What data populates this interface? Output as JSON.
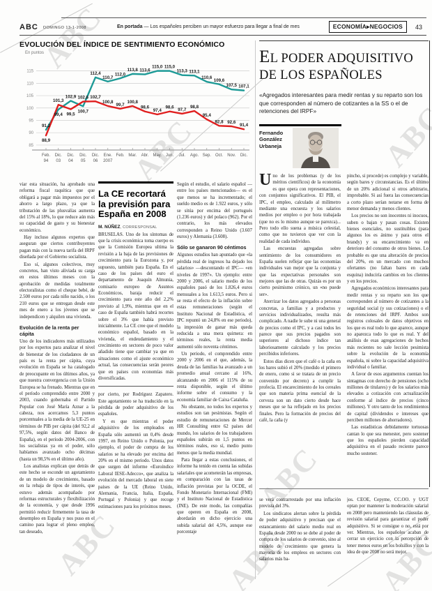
{
  "watermark": "ABC",
  "header": {
    "brand": "ABC",
    "date": "DOMINGO 13-1-2008",
    "strap_label": "En portada",
    "strap_dash": "—",
    "strap_text": "Los españoles perciben un mayor esfuerzo para llegar a final de mes",
    "section": "ECONOMÍA▸NEGOCIOS",
    "page_number": "43"
  },
  "chart": {
    "title": "EVOLUCIÓN DEL ÍNDICE DE SENTIMIENTO ECONÓMICO",
    "unit_label": "En puntos"
  },
  "chart_data": {
    "type": "line",
    "title": "EVOLUCIÓN DEL ÍNDICE DE SENTIMIENTO ECONÓMICO",
    "unit": "En puntos",
    "categories": [
      "Feb. 94",
      "Dic. 03",
      "Dic. 04",
      "Dic. 05",
      "Dic. 06",
      "Ene. 2007",
      "Feb.",
      "Mar.",
      "Abr.",
      "May.",
      "Jun.",
      "Jul.",
      "Ago.",
      "Sep.",
      "Oct.",
      "Nov.",
      "Dic."
    ],
    "series": [
      {
        "name": "línea verde azulada",
        "color": "#1d9a96",
        "values": [
          91.2,
          99.4,
          102.9,
          100.7,
          112.4,
          110.7,
          112.0,
          113.8,
          113.6,
          115.0,
          115.0,
          113.3,
          113.1,
          110.6,
          109.6,
          107.5,
          107.1
        ]
      },
      {
        "name": "línea roja",
        "color": "#e01f1f",
        "values": [
          88.9,
          101.3,
          99.5,
          102.6,
          102.7,
          100.8,
          99.7,
          100.8,
          98.6,
          97.4,
          98.6,
          97.7,
          98.8,
          95.4,
          92.8,
          92.6,
          91.4
        ]
      }
    ],
    "yticks": [
      85,
      90,
      95,
      100,
      105,
      110,
      115
    ],
    "ylim": [
      83,
      118
    ],
    "grid": true,
    "legend": "none"
  },
  "box": {
    "title": "La CE recortará la previsión para España en 2008",
    "byline_name": "M. NÚÑEZ",
    "byline_role": ", CORRESPONSAL",
    "paragraphs": [
      {
        "t": "p0",
        "text": "BRUSELAS. Uno de los síntomas de que la crisis económica toma cuerpo es que la Comisión Europea ultima la revisión a la baja de las previsiones de crecimiento para la Eurozona y, por supuesto, también para España. En el caso de los países del euro el departamento de Joaquín Almunia, comisario europeo de Asuntos Económicos, baraja reducir el crecimiento para este año del 2,2% previsto al 1,9%, mientras que en el caso de España también habrá recortes sobre el 3% que había previsto inicialmente. La CE cree que el modelo económico español, basado en la vivienda, el endeudamiento y el crecimiento en sectores de poco valor añadido tiene que cambiar ya que en situaciones como el ajuste económico actual, las consecuencias serán peores que en países con economías más diversificadas."
      }
    ]
  },
  "main_article": {
    "col1": [
      {
        "t": "p0",
        "text": "viar esta situación, ha aprobado una reforma fiscal raquítica que que obligará a pagar más impuestos por el ahorro a largo plazo, ya que la tributación de las plusvalías aumenta del 15% al 18%, lo que reduce aún más su capacidad de gasto y su bienestar económico."
      },
      {
        "t": "p",
        "text": "Hay incluso algunos expertos que aseguran que ciertos contribuyentes pagan más con la nueva tarifa del IRPF diseñada por el Gobierno socialista."
      },
      {
        "t": "p",
        "text": "Eso sí, algunos colectivos, muy concretos, han visto aliviada su carga en estos últimos meses con la aprobación de medidas totalmente electoralistas como el cheque bebé, de 2.500 euros por cada niño nacido, o los 210 euros que se entregan desde este mes de enero a los jóvenes que se independicen y alquilen una vivienda."
      },
      {
        "t": "h",
        "text": "Evolución de la renta per cápita"
      },
      {
        "t": "p0",
        "text": "Uno de los indicadores más utilizados por los expertos para analizar el nivel de bienestar de los ciudadanos de un país es la renta per cápita, cuya evolución en España se ha catalogado de preocupante en los últimos años, ya que nuestra convergencia con la Unión Europea se ha frenado. Mientras que en el período comprendido entre 2000 y 2003, cuando gobernaba el Partido Popular con José María Aznar a la cabeza, nos acercamos 5,3 puntos porcentuales a la media de la UE-25 en términos de PIB per cápita (del 92,2 al 97,5%, según datos del Banco de España), en el período 2004-2006, con los socialistas ya en el poder, sólo habíamos avanzado ocho décimas (hasta un 98,5% en el último año)."
      },
      {
        "t": "p",
        "text": "Los analistas explican que detrás de este hecho se esconde un agotamiento de un modelo de crecimiento, basado en la rebaja de tipos de interés, que estuvo además acompañado por reformas estructurales y flexibilización de la economía, y que desde 1996 permitió reducir firmemente la tasa de desempleo en España y nos puso en el camino para lograr el pleno empleo, tan deseado,"
      }
    ],
    "col2_after_box": [
      {
        "t": "p0",
        "text": "por cierto, por Rodríguez Zapatero. Este agotamiento se ha traducido en la pérdida de poder adquisitivo de los españoles."
      },
      {
        "t": "p",
        "text": "Y es que mientras el poder adquisitivo de los empleados en España sólo aumentó un 0,4% desde 1997, en Reino Unido o Polonia, por ejemplo, el poder de compra de los salarios se ha elevado por encima del 20% en el mismo periodo. Unos datos que surgen del informe «Euroíndice Laboral IESE-Adecco», que analiza la evolución del mercado laboral en siete países de la UE (Reino Unido, Alemania, Francia, Italia, España, Portugal y Polonia) y que recoge estimaciones para los próximos meses."
      }
    ],
    "col3": [
      {
        "t": "p0",
        "text": "Según el estudio, el salario español —entre los países mencionados— es el que menos se ha incrementado; el sueldo medio es de 1.922 euros, y sólo se sitúa por encima del portugués (1.236 euros) y del polaco (962). Por el contrario, los más elevados corresponden a Reino Unido (3.607 euros) y Alemania (3.608)."
      },
      {
        "t": "h",
        "text": "Sólo se ganaron 90 céntimos"
      },
      {
        "t": "p0",
        "text": "Algunos estudios han apuntado que «la pérdida real de ingresos ha dejado los salarios» —descontando el IPC— «en niveles de 1997». Un ejemplo: entre 2000 y 2006, el salario medio de los españoles pasó de los 1.826,4 euros mensuales a los 1.613,5 euros. Pero si se resta el efecto de la inflación sobre estas remuneraciones (según el Instituto Nacional de Estadística, el IPC repuntó un 24,8% en ese periodo), la impresión de ganar más queda reducida a una mera quimera: en términos reales, la renta media aumentó sólo noventa céntimos."
      },
      {
        "t": "p",
        "text": "Un periodo, el comprendido entre 2000 y 2006 en el que, además, la deuda de las familias ha avanzado a un promedio anual cercano al 16%, alcanzando en 2006 el 115% de su renta disponible, según el último informe sobre el consumo y la economía familiar de Caixa Cataluña."
      },
      {
        "t": "p",
        "text": "No obstante, no todos los expertos y estudios son tan pesimistas. Según el estudio de remuneraciones de Mercer HR Consulting entre 62 países del mundo, los salarios de los trabajadores españoles subirán en 1,5 puntos en términos reales, eso sí, medio punto menos que la media mundial."
      },
      {
        "t": "p",
        "text": "Para llegar a estas conclusiones, el informe ha tenido en cuenta las subidas salariales que acometerán las empresas, en comparación con las tasas de inflación previstas por la OCDE, el Fondo Monetario Internacional (FMI) y el Instituto Nacional de Estadística (INE). De este modo, las compañías que operen en España en 2008, abordarán en dicho ejercicio una subida salarial del 4,5%, aunque ese porcentaje"
      }
    ]
  },
  "opinion": {
    "headline": "El poder adquisitivo de los españoles",
    "quote": "«Agregados interesantes para medir rentas y su reparto son los que corresponden al número de cotizantes a la SS o el de retenciones del IRPF»",
    "author": "Fernando González Urbaneja",
    "col1": [
      {
        "t": "pd",
        "text": "Uno de los problemas (y de los méritos científicos) de la economía es que opera con representaciones, con conjuntos significativos. El PIB, el IPC, el empleo, calculado al milímetro mediante una encuesta y los salarios medios por empleo o por hora trabajada (que no es lo mismo aunque se parezca)... Pero todo ello suena a música celestial, como que no tuvieron que ver con la realidad de cada individuo."
      },
      {
        "t": "p",
        "text": "Las encuestas agregadas sobre sentimiento de los consumidores en España suelen reflejar que las economías individuales van mejor que la conjunta y que las expectativas personales son mejores que las de otras. Quizás es por un cierto pesimismo crónico, un «no puede ser»."
      },
      {
        "t": "p",
        "text": "Aterrizar los datos agregados a personas concretas, a familias y a productos y servicios individualizados, resulta más complicado. A nadie le sube ni una general de precios como el IPC, y a casi todos les parece que sus precios pagados son superiores al dichoso índice tan laboriosamente calculado y los precios percibidos inferiores."
      },
      {
        "t": "p",
        "text": "Estos días dicen que el café o la caña en los bares subió el 20% (medido el primero de enero, como si se tratara de un precio convenido por decreto) a cumplir la profecía. El encarecimiento de los cereales que son materia prima esencial de la cerveza son un dato cierto desde hace meses que se ha reflejado en los precios finales. Pero la formación de precios del café, la caña (y"
      }
    ],
    "col2": [
      {
        "t": "p0",
        "text": "pincho, si procede) es complejo y variable, según bares y circunstancias. Es el último de un 20% adicional si otros arbitrario, improbable. Si así fuera las consecuencias a corto plazo serían notarse en forma de menor demanda y menos clientes."
      },
      {
        "t": "p",
        "text": "Los precios no son inocentes ni inocuos, suben o bajan y pasan cosas. Existen bienes esenciales, no sustituibles (para algunos los es ánimo y para otros el brandy) y su encarecimiento va en deterioro del consumo de otros bienes. Lo probable es que una alteración de precios del 20%, en un mercado con muchos ofertantes (no faltan bares en cada esquina) induciría cambios en los clientes y en los precios."
      },
      {
        "t": "p",
        "text": "Agregados económicos interesantes para medir rentas y su reparto son los que corresponden al número de cotizantes a la seguridad social (y sus cotizaciones) o el de retenciones del IRPF. Ambos son registros colosales de datos objetivos en los que es real todo lo que aparece, aunque no aparezca todo lo que es real. Y del análisis de esas agregaciones de hechos más recientes no sale lección pesimista sobre la evolución de la economía española, ni sobre la capacidad adquisitiva individual o familiar."
      },
      {
        "t": "p",
        "text": "A favor de esos argumentos cuentan los sintagmas con derecho de pensiones (ocho millones de titulares) y de los salarios más elevados a cotización con actualización conforme al índice de precios (cinco millones). Y otro tanto de los rendimientos de capital (dividendos e intereses que perciben millones de ahorradores)."
      },
      {
        "t": "p",
        "text": "Las estadísticas debidamente tortuosas cantan lo que sea menester, pero sostener que los españoles pierden capacidad adquisitiva en el pasado reciente parece mucho sostener."
      }
    ]
  },
  "continuation": {
    "col1": [
      {
        "t": "p0",
        "text": "se verá contrarrestado por una inflación prevista del 3%."
      },
      {
        "t": "p",
        "text": "Los sindicatos alertan sobre la pérdida de poder adquisitivo y precisan que el estancamiento del salario medio real en España desde 2000 no se debe al poder de compra de los salarios de convenio, sino al modelo de crecimiento que genera la mayoría de los empleos en sectores con salarios más ba-"
      }
    ],
    "col2": [
      {
        "t": "p0",
        "text": "jos. CEOE, Cepyme, CC.OO. y UGT optan por mantener la moderación salarial en 2008 pero manteniendo las cláusulas de revisión salarial para garantizar el poder adquisitivo. Si se consigue o no, está por ver. Mientras, los españoles acaban de cerrar un ejercicio con la percepción de tener menos euros en los bolsillos y con la idea de que 2008 no será mejor."
      }
    ]
  }
}
